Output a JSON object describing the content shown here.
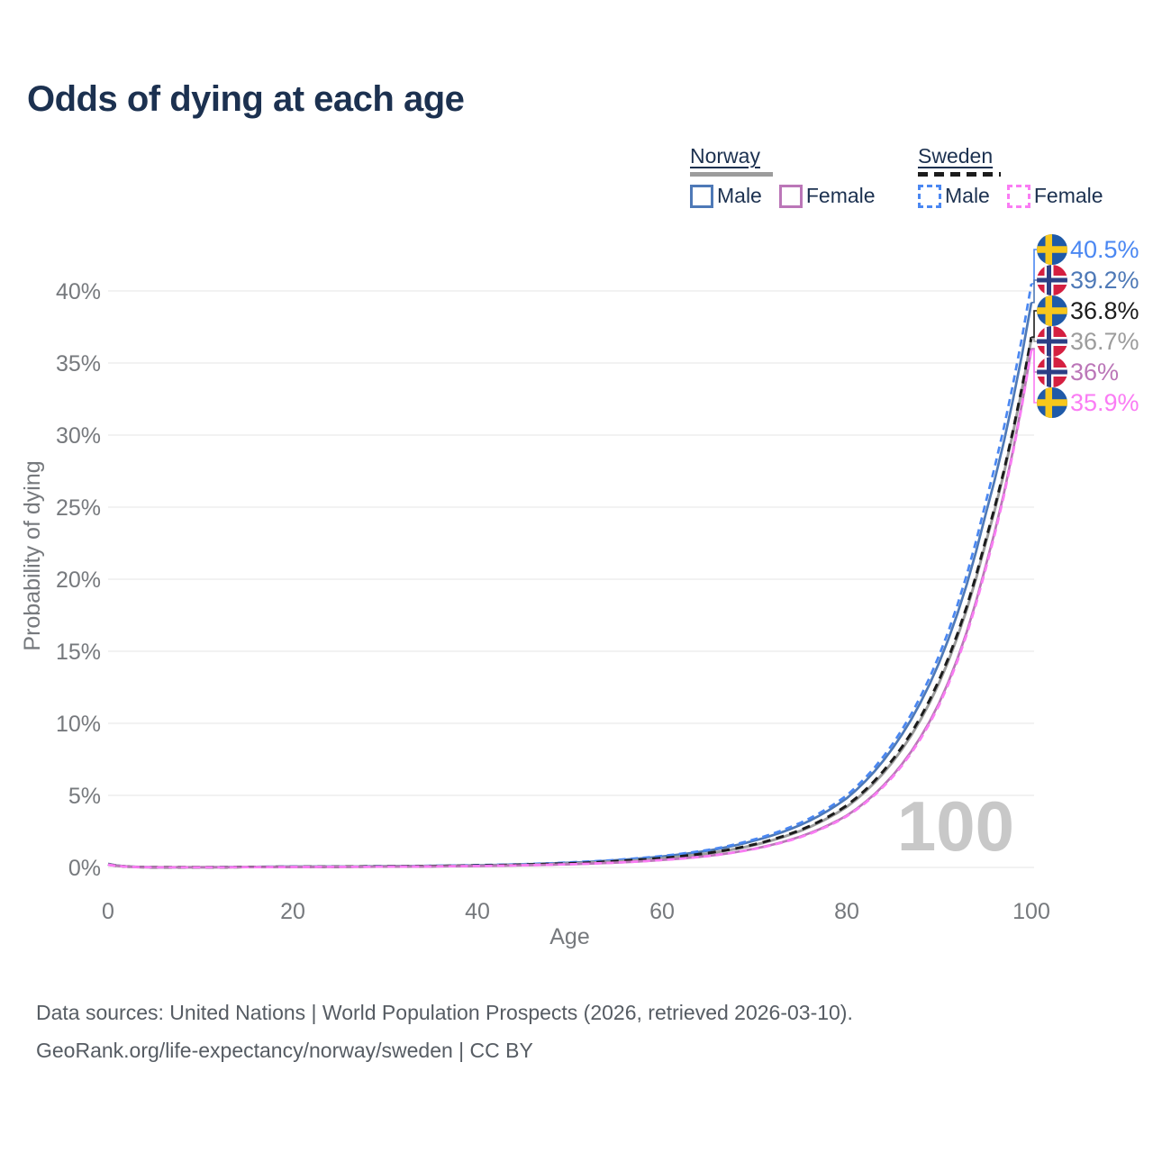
{
  "title": "Odds of dying at each age",
  "legend": {
    "groups": [
      {
        "id": "norway",
        "label": "Norway",
        "line_style": "solid",
        "items": [
          {
            "label": "Male"
          },
          {
            "label": "Female"
          }
        ]
      },
      {
        "id": "sweden",
        "label": "Sweden",
        "line_style": "dashed",
        "items": [
          {
            "label": "Male"
          },
          {
            "label": "Female"
          }
        ]
      }
    ]
  },
  "chart_data": {
    "type": "line",
    "title": "Odds of dying at each age",
    "xlabel": "Age",
    "ylabel": "Probability of dying",
    "x_ticks": [
      0,
      20,
      40,
      60,
      80,
      100
    ],
    "y_tick_labels": [
      "0%",
      "5%",
      "10%",
      "15%",
      "20%",
      "25%",
      "30%",
      "35%",
      "40%"
    ],
    "y_ticks_percent": [
      0,
      5,
      10,
      15,
      20,
      25,
      30,
      35,
      40
    ],
    "xlim": [
      0,
      100
    ],
    "ylim_percent": [
      0,
      43
    ],
    "grid": "horizontal",
    "legend_position": "top-right",
    "hover_age_watermark": "100",
    "x": [
      0,
      5,
      10,
      15,
      20,
      25,
      30,
      35,
      40,
      45,
      50,
      55,
      60,
      65,
      70,
      75,
      80,
      85,
      90,
      95,
      100
    ],
    "series": [
      {
        "name": "Sweden Male",
        "country": "Sweden",
        "sex": "Male",
        "color": "#4a87f2",
        "dash": "dashed",
        "end_label": "40.5%",
        "end_value_percent": 40.5,
        "values": [
          0.22,
          0.01,
          0.01,
          0.04,
          0.06,
          0.07,
          0.09,
          0.12,
          0.16,
          0.23,
          0.35,
          0.52,
          0.8,
          1.22,
          1.95,
          3.1,
          5.0,
          8.6,
          14.7,
          25.2,
          40.5
        ]
      },
      {
        "name": "Norway Male",
        "country": "Norway",
        "sex": "Male",
        "color": "#4e79b7",
        "dash": "solid",
        "end_label": "39.2%",
        "end_value_percent": 39.2,
        "values": [
          0.25,
          0.01,
          0.01,
          0.04,
          0.06,
          0.07,
          0.09,
          0.11,
          0.15,
          0.22,
          0.33,
          0.5,
          0.76,
          1.17,
          1.86,
          2.95,
          4.8,
          8.3,
          14.2,
          24.4,
          39.2
        ]
      },
      {
        "name": "Sweden Total",
        "country": "Sweden",
        "sex": "Both",
        "color": "#1c1c1c",
        "dash": "dashed",
        "end_label": "36.8%",
        "end_value_percent": 36.8,
        "values": [
          0.2,
          0.01,
          0.01,
          0.03,
          0.04,
          0.05,
          0.07,
          0.09,
          0.13,
          0.19,
          0.28,
          0.43,
          0.65,
          1.0,
          1.6,
          2.6,
          4.3,
          7.5,
          13.0,
          22.6,
          36.8
        ]
      },
      {
        "name": "Norway Total",
        "country": "Norway",
        "sex": "Both",
        "color": "#9c9c9c",
        "dash": "solid",
        "end_label": "36.7%",
        "end_value_percent": 36.7,
        "values": [
          0.22,
          0.01,
          0.01,
          0.03,
          0.04,
          0.05,
          0.07,
          0.09,
          0.12,
          0.18,
          0.27,
          0.42,
          0.63,
          0.97,
          1.56,
          2.54,
          4.2,
          7.35,
          12.8,
          22.4,
          36.7
        ]
      },
      {
        "name": "Norway Female",
        "country": "Norway",
        "sex": "Female",
        "color": "#bb76b8",
        "dash": "solid",
        "end_label": "36%",
        "end_value_percent": 36.0,
        "values": [
          0.2,
          0.01,
          0.01,
          0.02,
          0.03,
          0.04,
          0.05,
          0.07,
          0.1,
          0.15,
          0.22,
          0.34,
          0.52,
          0.8,
          1.3,
          2.15,
          3.6,
          6.4,
          11.4,
          20.8,
          36.0
        ]
      },
      {
        "name": "Sweden Female",
        "country": "Sweden",
        "sex": "Female",
        "color": "#fa7cf4",
        "dash": "dashed",
        "end_label": "35.9%",
        "end_value_percent": 35.9,
        "values": [
          0.18,
          0.01,
          0.01,
          0.02,
          0.03,
          0.04,
          0.05,
          0.07,
          0.1,
          0.15,
          0.22,
          0.33,
          0.51,
          0.79,
          1.28,
          2.1,
          3.55,
          6.3,
          11.25,
          20.6,
          35.9
        ]
      }
    ],
    "flag_colors": {
      "sweden_blue": "#1f5aa8",
      "sweden_yellow": "#f7c71c",
      "norway_red": "#d51f40",
      "norway_white": "#ffffff",
      "norway_navy": "#2c3f85"
    },
    "style_colors": {
      "title_navy": "#1c3150",
      "grid": "#e9e9e9",
      "tick_gray": "#76797d",
      "watermark_gray": "#c8c8c8",
      "footer_gray": "#565c63"
    }
  },
  "footer": {
    "line1": "Data sources: United Nations | World Population Prospects (2026, retrieved 2026-03-10).",
    "line2": "GeoRank.org/life-expectancy/norway/sweden | CC BY"
  }
}
